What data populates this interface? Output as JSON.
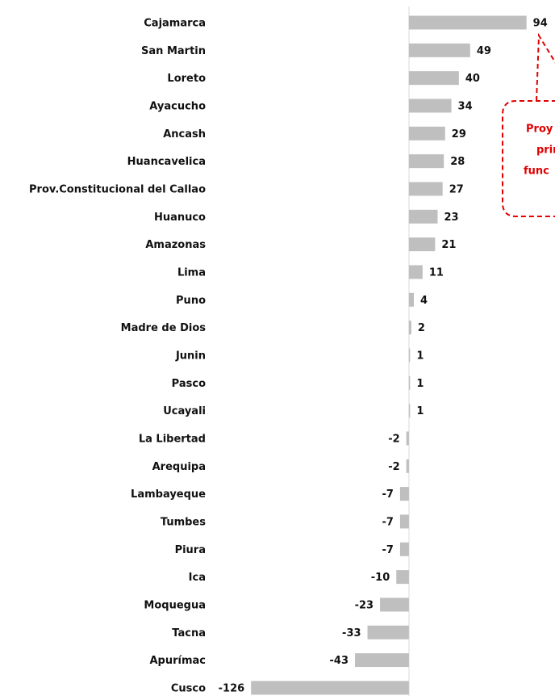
{
  "chart_data": {
    "type": "bar",
    "orientation": "horizontal",
    "categories": [
      "Cajamarca",
      "San Martin",
      "Loreto",
      "Ayacucho",
      "Ancash",
      "Huancavelica",
      "Prov.Constitucional del Callao",
      "Huanuco",
      "Amazonas",
      "Lima",
      "Puno",
      "Madre de Dios",
      "Junin",
      "Pasco",
      "Ucayali",
      "La Libertad",
      "Arequipa",
      "Lambayeque",
      "Tumbes",
      "Piura",
      "Ica",
      "Moquegua",
      "Tacna",
      "Apurímac",
      "Cusco"
    ],
    "values": [
      94,
      49,
      40,
      34,
      29,
      28,
      27,
      23,
      21,
      11,
      4,
      2,
      1,
      1,
      1,
      -2,
      -2,
      -7,
      -7,
      -7,
      -10,
      -23,
      -33,
      -43,
      -126
    ],
    "color": "#bfbfbf",
    "xlim": [
      -130,
      100
    ],
    "annotation": [
      "Proy",
      "prin",
      "func"
    ],
    "annotation_color": "#e00000"
  }
}
